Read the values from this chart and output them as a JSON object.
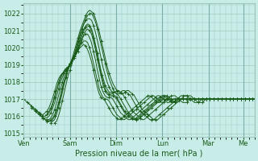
{
  "xlabel": "Pression niveau de la mer( hPa )",
  "bg_color": "#c8ece8",
  "grid_color": "#a0c8c0",
  "line_color": "#1a5c1a",
  "ylim": [
    1014.8,
    1022.6
  ],
  "yticks": [
    1015,
    1016,
    1017,
    1018,
    1019,
    1020,
    1021,
    1022
  ],
  "day_labels": [
    "Ven",
    "Sam",
    "Dim",
    "Lun",
    "Mar",
    "Me"
  ],
  "day_positions": [
    0,
    24,
    48,
    72,
    96,
    114
  ],
  "xlim": [
    0,
    120
  ],
  "lines": [
    {
      "start_h": 0,
      "points": [
        1017.0,
        1016.9,
        1016.8,
        1016.7,
        1016.6,
        1016.5,
        1016.4,
        1016.3,
        1016.2,
        1016.1,
        1016.1,
        1016.2,
        1016.3,
        1016.5,
        1016.8,
        1017.1,
        1017.5,
        1017.9,
        1018.2,
        1018.4,
        1018.5,
        1018.6,
        1018.7,
        1018.9,
        1019.1,
        1019.4,
        1019.8,
        1020.2,
        1020.6,
        1021.0,
        1021.3,
        1021.6,
        1021.9,
        1022.1,
        1022.2,
        1022.1,
        1022.0,
        1021.7,
        1021.3,
        1020.9,
        1020.4,
        1019.9,
        1019.4,
        1018.9,
        1018.5,
        1018.2,
        1017.9,
        1017.7,
        1017.5,
        1017.4,
        1017.3,
        1017.3,
        1017.4,
        1017.5,
        1017.5,
        1017.4,
        1017.3,
        1017.2,
        1017.0,
        1016.8,
        1016.6,
        1016.4,
        1016.3,
        1016.2,
        1016.1,
        1016.0,
        1015.9,
        1015.8,
        1015.8,
        1015.8,
        1015.9,
        1016.0,
        1016.1,
        1016.2,
        1016.3,
        1016.4,
        1016.5,
        1016.6,
        1016.7,
        1016.8,
        1016.9,
        1017.0,
        1017.1,
        1017.2,
        1017.2,
        1017.2,
        1017.2,
        1017.1,
        1017.0,
        1016.9,
        1016.8,
        1016.8,
        1016.8,
        1016.9,
        1017.0,
        1017.0,
        1017.0,
        1017.0,
        1017.0,
        1017.0,
        1017.0,
        1017.0,
        1017.0,
        1017.0,
        1017.0,
        1017.0,
        1017.0,
        1017.0,
        1017.0,
        1017.0,
        1017.0,
        1017.0,
        1017.0,
        1017.0,
        1017.0,
        1017.0,
        1017.0,
        1017.0,
        1017.0,
        1017.0
      ]
    },
    {
      "start_h": 2,
      "points": [
        1016.8,
        1016.7,
        1016.6,
        1016.5,
        1016.4,
        1016.3,
        1016.2,
        1016.1,
        1016.0,
        1016.0,
        1016.1,
        1016.3,
        1016.5,
        1016.8,
        1017.2,
        1017.6,
        1018.0,
        1018.3,
        1018.5,
        1018.6,
        1018.7,
        1018.8,
        1019.0,
        1019.2,
        1019.5,
        1019.9,
        1020.3,
        1020.7,
        1021.1,
        1021.4,
        1021.7,
        1021.9,
        1022.0,
        1022.0,
        1021.8,
        1021.5,
        1021.1,
        1020.6,
        1020.1,
        1019.6,
        1019.1,
        1018.6,
        1018.2,
        1017.9,
        1017.6,
        1017.4,
        1017.3,
        1017.3,
        1017.4,
        1017.5,
        1017.5,
        1017.4,
        1017.3,
        1017.2,
        1017.0,
        1016.8,
        1016.6,
        1016.4,
        1016.3,
        1016.2,
        1016.1,
        1016.0,
        1015.9,
        1015.8,
        1015.8,
        1015.8,
        1015.9,
        1016.0,
        1016.1,
        1016.2,
        1016.3,
        1016.4,
        1016.5,
        1016.6,
        1016.7,
        1016.8,
        1016.9,
        1017.0,
        1017.1,
        1017.2,
        1017.2,
        1017.2,
        1017.2,
        1017.1,
        1017.0,
        1016.9,
        1016.8,
        1016.8,
        1016.8,
        1016.9,
        1017.0,
        1017.0,
        1017.0,
        1017.0,
        1017.0,
        1017.0,
        1017.0,
        1017.0,
        1017.0,
        1017.0,
        1017.0,
        1017.0,
        1017.0,
        1017.0,
        1017.0,
        1017.0,
        1017.0,
        1017.0,
        1017.0,
        1017.0,
        1017.0,
        1017.0,
        1017.0,
        1017.0,
        1017.0,
        1017.0,
        1017.0,
        1017.0
      ]
    },
    {
      "start_h": 4,
      "points": [
        1016.5,
        1016.4,
        1016.3,
        1016.2,
        1016.1,
        1016.0,
        1016.0,
        1016.0,
        1016.1,
        1016.2,
        1016.4,
        1016.7,
        1017.1,
        1017.5,
        1017.9,
        1018.2,
        1018.5,
        1018.7,
        1018.8,
        1018.9,
        1019.1,
        1019.3,
        1019.6,
        1020.0,
        1020.4,
        1020.8,
        1021.1,
        1021.4,
        1021.6,
        1021.7,
        1021.7,
        1021.6,
        1021.3,
        1020.9,
        1020.4,
        1019.9,
        1019.3,
        1018.8,
        1018.4,
        1018.0,
        1017.7,
        1017.5,
        1017.4,
        1017.4,
        1017.5,
        1017.5,
        1017.4,
        1017.3,
        1017.1,
        1016.9,
        1016.7,
        1016.5,
        1016.3,
        1016.2,
        1016.1,
        1016.0,
        1015.9,
        1015.8,
        1015.8,
        1015.9,
        1016.0,
        1016.1,
        1016.2,
        1016.3,
        1016.4,
        1016.5,
        1016.6,
        1016.7,
        1016.8,
        1016.9,
        1017.0,
        1017.1,
        1017.2,
        1017.2,
        1017.2,
        1017.1,
        1017.0,
        1016.9,
        1016.8,
        1016.8,
        1016.8,
        1016.9,
        1017.0,
        1017.0,
        1017.0,
        1017.0,
        1017.0,
        1017.0,
        1017.0,
        1017.0,
        1017.0,
        1017.0,
        1017.0,
        1017.0,
        1017.0,
        1017.0,
        1017.0,
        1017.0,
        1017.0,
        1017.0,
        1017.0,
        1017.0,
        1017.0,
        1017.0,
        1017.0,
        1017.0,
        1017.0,
        1017.0,
        1017.0,
        1017.0,
        1017.0,
        1017.0,
        1017.0,
        1017.0,
        1017.0,
        1017.0
      ]
    },
    {
      "start_h": 6,
      "points": [
        1016.3,
        1016.2,
        1016.1,
        1016.0,
        1015.9,
        1015.9,
        1015.9,
        1016.0,
        1016.2,
        1016.5,
        1016.8,
        1017.2,
        1017.6,
        1018.0,
        1018.3,
        1018.6,
        1018.8,
        1018.9,
        1019.0,
        1019.2,
        1019.5,
        1019.8,
        1020.2,
        1020.5,
        1020.9,
        1021.1,
        1021.3,
        1021.4,
        1021.3,
        1021.1,
        1020.7,
        1020.2,
        1019.7,
        1019.1,
        1018.6,
        1018.2,
        1017.8,
        1017.6,
        1017.4,
        1017.4,
        1017.4,
        1017.4,
        1017.3,
        1017.2,
        1017.0,
        1016.8,
        1016.6,
        1016.4,
        1016.2,
        1016.1,
        1016.0,
        1015.9,
        1015.8,
        1015.8,
        1015.9,
        1016.0,
        1016.1,
        1016.2,
        1016.3,
        1016.4,
        1016.5,
        1016.6,
        1016.7,
        1016.8,
        1016.9,
        1017.0,
        1017.1,
        1017.2,
        1017.2,
        1017.1,
        1017.0,
        1016.9,
        1016.8,
        1016.8,
        1016.9,
        1017.0,
        1017.0,
        1017.0,
        1017.0,
        1017.0,
        1017.0,
        1017.0,
        1017.0,
        1017.0,
        1017.0,
        1017.0,
        1017.0,
        1017.0,
        1017.0,
        1017.0,
        1017.0,
        1017.0,
        1017.0,
        1017.0,
        1017.0,
        1017.0,
        1017.0,
        1017.0,
        1017.0,
        1017.0,
        1017.0,
        1017.0,
        1017.0,
        1017.0,
        1017.0,
        1017.0,
        1017.0,
        1017.0,
        1017.0,
        1017.0,
        1017.0,
        1017.0,
        1017.0,
        1017.0
      ]
    },
    {
      "start_h": 8,
      "points": [
        1016.1,
        1016.0,
        1015.9,
        1015.8,
        1015.8,
        1015.8,
        1015.9,
        1016.1,
        1016.4,
        1016.8,
        1017.2,
        1017.6,
        1018.0,
        1018.4,
        1018.7,
        1018.9,
        1019.0,
        1019.2,
        1019.4,
        1019.7,
        1020.0,
        1020.4,
        1020.7,
        1021.0,
        1021.2,
        1021.3,
        1021.2,
        1021.0,
        1020.6,
        1020.1,
        1019.5,
        1019.0,
        1018.4,
        1018.0,
        1017.6,
        1017.4,
        1017.3,
        1017.3,
        1017.3,
        1017.2,
        1017.1,
        1016.9,
        1016.7,
        1016.5,
        1016.3,
        1016.2,
        1016.1,
        1016.0,
        1015.9,
        1015.8,
        1015.8,
        1015.9,
        1016.0,
        1016.1,
        1016.2,
        1016.3,
        1016.4,
        1016.5,
        1016.6,
        1016.7,
        1016.8,
        1016.9,
        1017.0,
        1017.1,
        1017.2,
        1017.2,
        1017.1,
        1017.0,
        1016.9,
        1016.8,
        1016.8,
        1016.9,
        1017.0,
        1017.0,
        1017.0,
        1017.0,
        1017.0,
        1017.0,
        1017.0,
        1017.0,
        1017.0,
        1017.0,
        1017.0,
        1017.0,
        1017.0,
        1017.0,
        1017.0,
        1017.0,
        1017.0,
        1017.0,
        1017.0,
        1017.0,
        1017.0,
        1017.0,
        1017.0,
        1017.0,
        1017.0,
        1017.0,
        1017.0,
        1017.0,
        1017.0,
        1017.0,
        1017.0,
        1017.0,
        1017.0,
        1017.0,
        1017.0,
        1017.0,
        1017.0,
        1017.0,
        1017.0,
        1017.0
      ]
    },
    {
      "start_h": 10,
      "points": [
        1015.9,
        1015.8,
        1015.7,
        1015.7,
        1015.8,
        1015.9,
        1016.1,
        1016.4,
        1016.8,
        1017.2,
        1017.7,
        1018.1,
        1018.5,
        1018.8,
        1019.0,
        1019.2,
        1019.4,
        1019.6,
        1019.9,
        1020.2,
        1020.5,
        1020.8,
        1021.0,
        1021.1,
        1021.0,
        1020.8,
        1020.4,
        1019.9,
        1019.3,
        1018.8,
        1018.3,
        1017.8,
        1017.5,
        1017.3,
        1017.2,
        1017.2,
        1017.2,
        1017.1,
        1017.0,
        1016.8,
        1016.6,
        1016.4,
        1016.2,
        1016.1,
        1016.0,
        1015.9,
        1015.8,
        1015.8,
        1015.9,
        1016.0,
        1016.1,
        1016.2,
        1016.3,
        1016.4,
        1016.5,
        1016.6,
        1016.7,
        1016.8,
        1016.9,
        1017.0,
        1017.1,
        1017.2,
        1017.2,
        1017.1,
        1017.0,
        1016.9,
        1016.8,
        1016.8,
        1016.9,
        1017.0,
        1017.0,
        1017.0,
        1017.0,
        1017.0,
        1017.0,
        1017.0,
        1017.0,
        1017.0,
        1017.0,
        1017.0,
        1017.0,
        1017.0,
        1017.0,
        1017.0,
        1017.0,
        1017.0,
        1017.0,
        1017.0,
        1017.0,
        1017.0,
        1017.0,
        1017.0,
        1017.0,
        1017.0,
        1017.0,
        1017.0,
        1017.0,
        1017.0,
        1017.0,
        1017.0,
        1017.0,
        1017.0,
        1017.0,
        1017.0,
        1017.0,
        1017.0,
        1017.0,
        1017.0,
        1017.0,
        1017.0
      ]
    },
    {
      "start_h": 12,
      "points": [
        1015.7,
        1015.7,
        1015.7,
        1015.8,
        1016.0,
        1016.3,
        1016.7,
        1017.1,
        1017.6,
        1018.0,
        1018.4,
        1018.8,
        1019.1,
        1019.3,
        1019.5,
        1019.7,
        1020.0,
        1020.2,
        1020.5,
        1020.7,
        1020.8,
        1020.8,
        1020.6,
        1020.3,
        1019.8,
        1019.3,
        1018.7,
        1018.2,
        1017.7,
        1017.4,
        1017.2,
        1017.1,
        1017.1,
        1017.1,
        1017.0,
        1016.8,
        1016.6,
        1016.4,
        1016.2,
        1016.1,
        1016.0,
        1015.9,
        1015.8,
        1015.8,
        1015.9,
        1016.0,
        1016.1,
        1016.2,
        1016.3,
        1016.4,
        1016.5,
        1016.6,
        1016.7,
        1016.8,
        1016.9,
        1017.0,
        1017.1,
        1017.2,
        1017.2,
        1017.1,
        1017.0,
        1016.9,
        1016.8,
        1016.8,
        1016.9,
        1017.0,
        1017.0,
        1017.0,
        1017.0,
        1017.0,
        1017.0,
        1017.0,
        1017.0,
        1017.0,
        1017.0,
        1017.0,
        1017.0,
        1017.0,
        1017.0,
        1017.0,
        1017.0,
        1017.0,
        1017.0,
        1017.0,
        1017.0,
        1017.0,
        1017.0,
        1017.0,
        1017.0,
        1017.0,
        1017.0,
        1017.0,
        1017.0,
        1017.0,
        1017.0,
        1017.0,
        1017.0,
        1017.0,
        1017.0,
        1017.0,
        1017.0,
        1017.0,
        1017.0,
        1017.0,
        1017.0,
        1017.0,
        1017.0,
        1017.0
      ]
    },
    {
      "start_h": 14,
      "points": [
        1015.6,
        1015.7,
        1015.8,
        1016.1,
        1016.5,
        1016.9,
        1017.4,
        1017.9,
        1018.3,
        1018.7,
        1019.0,
        1019.3,
        1019.5,
        1019.7,
        1019.9,
        1020.1,
        1020.3,
        1020.4,
        1020.4,
        1020.3,
        1020.0,
        1019.6,
        1019.1,
        1018.6,
        1018.1,
        1017.6,
        1017.3,
        1017.1,
        1017.0,
        1017.0,
        1016.9,
        1016.7,
        1016.5,
        1016.3,
        1016.1,
        1016.0,
        1015.9,
        1015.8,
        1015.8,
        1015.9,
        1016.0,
        1016.1,
        1016.2,
        1016.3,
        1016.4,
        1016.5,
        1016.6,
        1016.7,
        1016.8,
        1016.9,
        1017.0,
        1017.1,
        1017.2,
        1017.2,
        1017.1,
        1017.0,
        1016.9,
        1016.8,
        1016.8,
        1016.9,
        1017.0,
        1017.0,
        1017.0,
        1017.0,
        1017.0,
        1017.0,
        1017.0,
        1017.0,
        1017.0,
        1017.0,
        1017.0,
        1017.0,
        1017.0,
        1017.0,
        1017.0,
        1017.0,
        1017.0,
        1017.0,
        1017.0,
        1017.0,
        1017.0,
        1017.0,
        1017.0,
        1017.0,
        1017.0,
        1017.0,
        1017.0,
        1017.0,
        1017.0,
        1017.0,
        1017.0,
        1017.0,
        1017.0,
        1017.0,
        1017.0,
        1017.0,
        1017.0,
        1017.0,
        1017.0,
        1017.0,
        1017.0,
        1017.0,
        1017.0,
        1017.0,
        1017.0,
        1017.0
      ]
    },
    {
      "start_h": 16,
      "points": [
        1015.6,
        1015.7,
        1016.0,
        1016.4,
        1016.9,
        1017.4,
        1017.9,
        1018.4,
        1018.7,
        1019.1,
        1019.4,
        1019.6,
        1019.8,
        1020.0,
        1020.1,
        1020.2,
        1020.1,
        1019.9,
        1019.6,
        1019.2,
        1018.7,
        1018.2,
        1017.7,
        1017.3,
        1017.1,
        1017.0,
        1016.9,
        1016.7,
        1016.5,
        1016.3,
        1016.1,
        1016.0,
        1015.9,
        1015.8,
        1015.8,
        1015.9,
        1016.0,
        1016.1,
        1016.2,
        1016.3,
        1016.4,
        1016.5,
        1016.6,
        1016.7,
        1016.8,
        1016.9,
        1017.0,
        1017.1,
        1017.2,
        1017.2,
        1017.1,
        1017.0,
        1016.9,
        1016.8,
        1016.8,
        1016.9,
        1017.0,
        1017.0,
        1017.0,
        1017.0,
        1017.0,
        1017.0,
        1017.0,
        1017.0,
        1017.0,
        1017.0,
        1017.0,
        1017.0,
        1017.0,
        1017.0,
        1017.0,
        1017.0,
        1017.0,
        1017.0,
        1017.0,
        1017.0,
        1017.0,
        1017.0,
        1017.0,
        1017.0,
        1017.0,
        1017.0,
        1017.0,
        1017.0,
        1017.0,
        1017.0,
        1017.0,
        1017.0,
        1017.0,
        1017.0,
        1017.0,
        1017.0,
        1017.0,
        1017.0,
        1017.0,
        1017.0,
        1017.0,
        1017.0,
        1017.0,
        1017.0,
        1017.0,
        1017.0,
        1017.0,
        1017.0
      ]
    }
  ]
}
